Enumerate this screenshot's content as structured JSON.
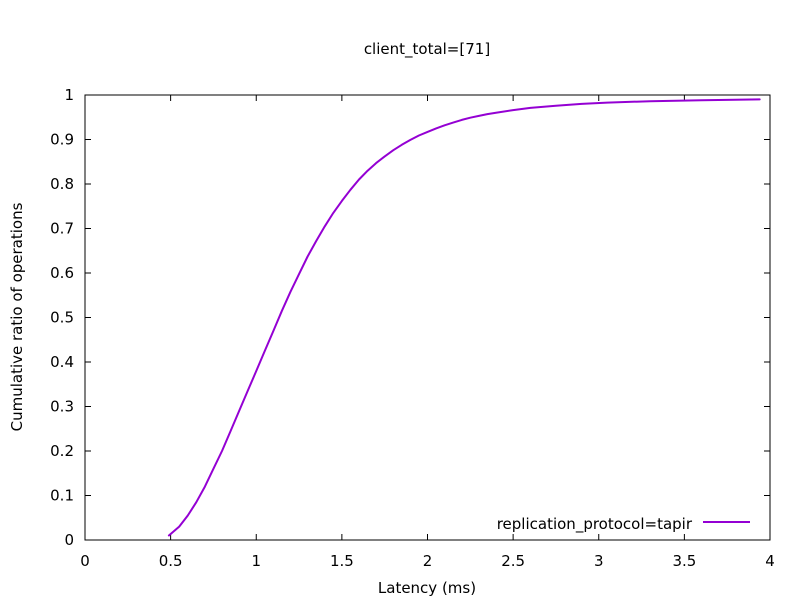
{
  "chart_data": {
    "type": "line",
    "title": "client_total=[71]",
    "xlabel": "Latency (ms)",
    "ylabel": "Cumulative ratio of operations",
    "xlim": [
      0,
      4
    ],
    "ylim": [
      0,
      1
    ],
    "x_ticks": [
      "0",
      "0.5",
      "1",
      "1.5",
      "2",
      "2.5",
      "3",
      "3.5",
      "4"
    ],
    "y_ticks": [
      "0",
      "0.1",
      "0.2",
      "0.3",
      "0.4",
      "0.5",
      "0.6",
      "0.7",
      "0.8",
      "0.9",
      "1"
    ],
    "grid": false,
    "legend_position": "bottom-right",
    "series": [
      {
        "name": "replication_protocol=tapir",
        "color": "#9400d3",
        "x": [
          0.49,
          0.55,
          0.6,
          0.65,
          0.7,
          0.75,
          0.8,
          0.85,
          0.9,
          0.95,
          1.0,
          1.05,
          1.1,
          1.15,
          1.2,
          1.25,
          1.3,
          1.35,
          1.4,
          1.45,
          1.5,
          1.55,
          1.6,
          1.65,
          1.7,
          1.75,
          1.8,
          1.85,
          1.9,
          1.95,
          2.0,
          2.05,
          2.1,
          2.15,
          2.2,
          2.25,
          2.3,
          2.35,
          2.4,
          2.5,
          2.6,
          2.75,
          2.9,
          3.05,
          3.3,
          3.6,
          3.94
        ],
        "y": [
          0.01,
          0.03,
          0.055,
          0.085,
          0.12,
          0.16,
          0.2,
          0.245,
          0.29,
          0.335,
          0.38,
          0.425,
          0.47,
          0.515,
          0.558,
          0.598,
          0.637,
          0.672,
          0.705,
          0.735,
          0.762,
          0.787,
          0.81,
          0.83,
          0.847,
          0.862,
          0.876,
          0.888,
          0.899,
          0.909,
          0.917,
          0.925,
          0.932,
          0.938,
          0.944,
          0.949,
          0.953,
          0.957,
          0.96,
          0.966,
          0.971,
          0.976,
          0.98,
          0.983,
          0.986,
          0.988,
          0.99
        ]
      }
    ]
  }
}
